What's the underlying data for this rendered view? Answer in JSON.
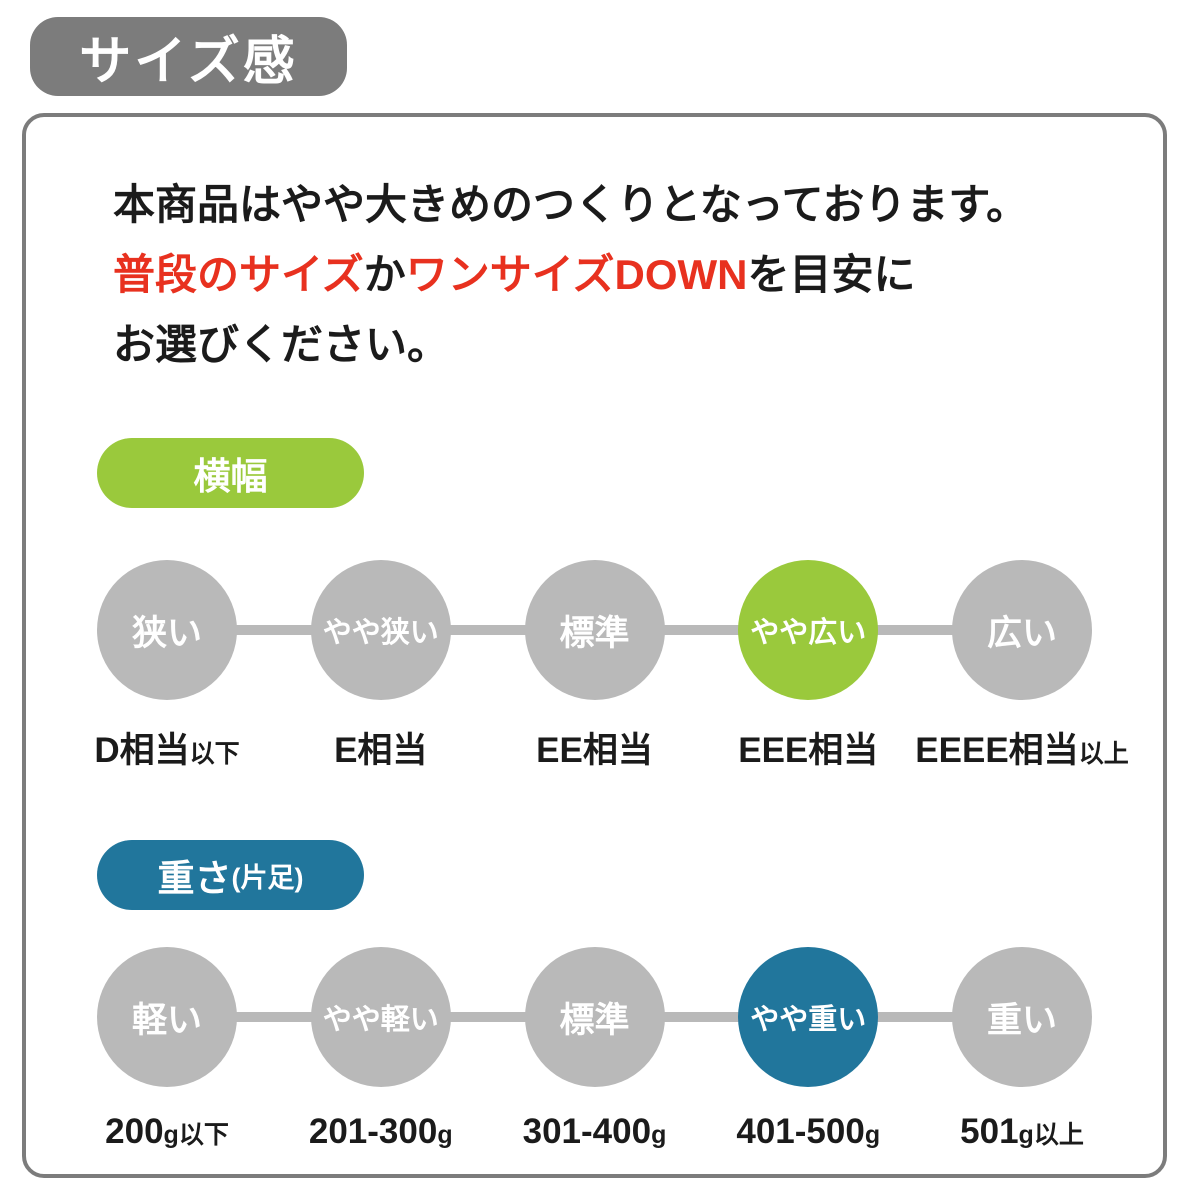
{
  "page_title": "サイズ感",
  "intro": {
    "line1": "本商品はやや大きめのつくりとなっております。",
    "line2": [
      {
        "text": "普段のサイズ",
        "emphasis": true
      },
      {
        "text": "か",
        "emphasis": false
      },
      {
        "text": "ワンサイズDOWN",
        "emphasis": true
      },
      {
        "text": "を目安に",
        "emphasis": false
      }
    ],
    "line3": "お選びください。"
  },
  "sections": [
    {
      "name": "width",
      "pill": {
        "label": "横幅",
        "sub": ""
      },
      "accent": "#9ac93c",
      "selected": 3,
      "steps": [
        "狭い",
        "やや狭い",
        "標準",
        "やや広い",
        "広い"
      ],
      "labels": [
        {
          "main": "D相当",
          "unit": "",
          "suffix": "以下"
        },
        {
          "main": "E相当",
          "unit": "",
          "suffix": ""
        },
        {
          "main": "EE相当",
          "unit": "",
          "suffix": ""
        },
        {
          "main": "EEE相当",
          "unit": "",
          "suffix": ""
        },
        {
          "main": "EEEE相当",
          "unit": "",
          "suffix": "以上"
        }
      ]
    },
    {
      "name": "weight",
      "pill": {
        "label": "重さ",
        "sub": "(片足)"
      },
      "accent": "#21769c",
      "selected": 3,
      "steps": [
        "軽い",
        "やや軽い",
        "標準",
        "やや重い",
        "重い"
      ],
      "labels": [
        {
          "main": "200",
          "unit": "g",
          "suffix": "以下"
        },
        {
          "main": "201-300",
          "unit": "g",
          "suffix": ""
        },
        {
          "main": "301-400",
          "unit": "g",
          "suffix": ""
        },
        {
          "main": "401-500",
          "unit": "g",
          "suffix": ""
        },
        {
          "main": "501",
          "unit": "g",
          "suffix": "以上"
        }
      ]
    }
  ],
  "colors": {
    "badge_gray": "#7c7c7c",
    "panel_border": "#7c7c7c",
    "circle_gray": "#b9b9b9",
    "text_black": "#1b1b1b",
    "text_red": "#e8311f",
    "accent_green": "#9ac93c",
    "accent_teal": "#21769c"
  }
}
